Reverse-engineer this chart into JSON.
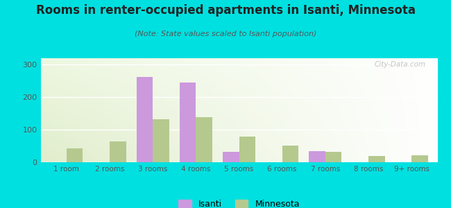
{
  "title": "Rooms in renter-occupied apartments in Isanti, Minnesota",
  "subtitle": "(Note: State values scaled to Isanti population)",
  "categories": [
    "1 room",
    "2 rooms",
    "3 rooms",
    "4 rooms",
    "5 rooms",
    "6 rooms",
    "7 rooms",
    "8 rooms",
    "9+ rooms"
  ],
  "isanti_values": [
    0,
    0,
    262,
    245,
    33,
    0,
    35,
    0,
    0
  ],
  "minnesota_values": [
    42,
    65,
    132,
    138,
    80,
    52,
    32,
    20,
    22
  ],
  "isanti_color": "#cc99dd",
  "minnesota_color": "#b5c98e",
  "background_outer": "#00e0e0",
  "ylim": [
    0,
    320
  ],
  "yticks": [
    0,
    100,
    200,
    300
  ],
  "bar_width": 0.38,
  "legend_isanti": "Isanti",
  "legend_minnesota": "Minnesota",
  "title_fontsize": 12,
  "subtitle_fontsize": 8,
  "watermark_text": "City-Data.com"
}
